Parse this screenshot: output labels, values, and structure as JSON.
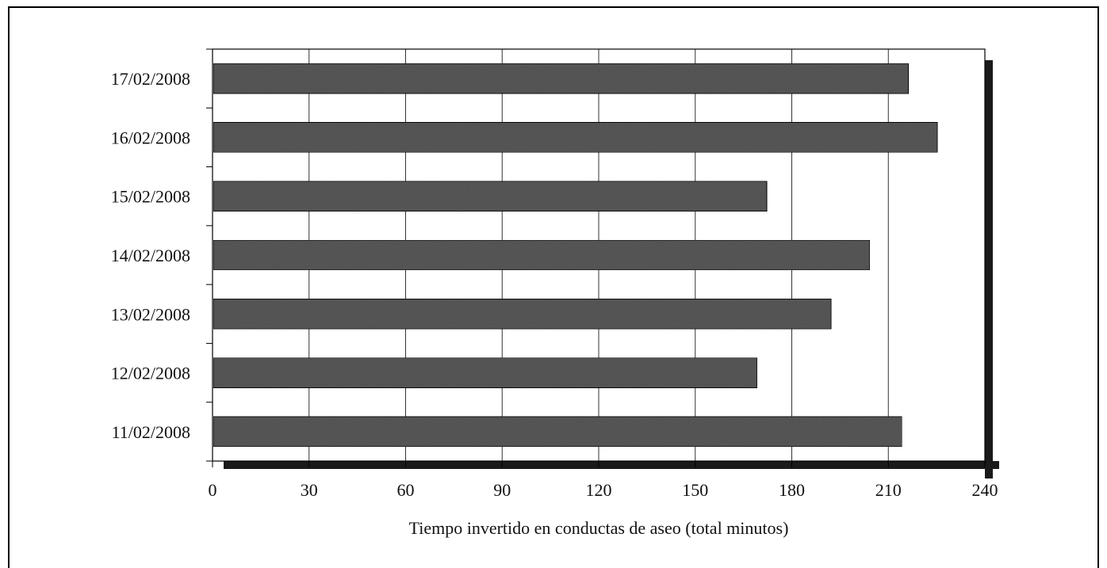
{
  "chart_data": {
    "type": "bar",
    "orientation": "horizontal",
    "title": "",
    "xlabel": "Tiempo invertido en conductas de aseo (total minutos)",
    "ylabel": "",
    "categories": [
      "11/02/2008",
      "12/02/2008",
      "13/02/2008",
      "14/02/2008",
      "15/02/2008",
      "16/02/2008",
      "17/02/2008"
    ],
    "values": [
      214,
      169,
      192,
      204,
      172,
      225,
      216
    ],
    "xlim": [
      0,
      240
    ],
    "xticks": [
      "0",
      "30",
      "60",
      "90",
      "120",
      "150",
      "180",
      "210",
      "240"
    ],
    "grid": true,
    "bar_color": "#5a5a5a",
    "shadow_color": "#1a1a1a"
  }
}
